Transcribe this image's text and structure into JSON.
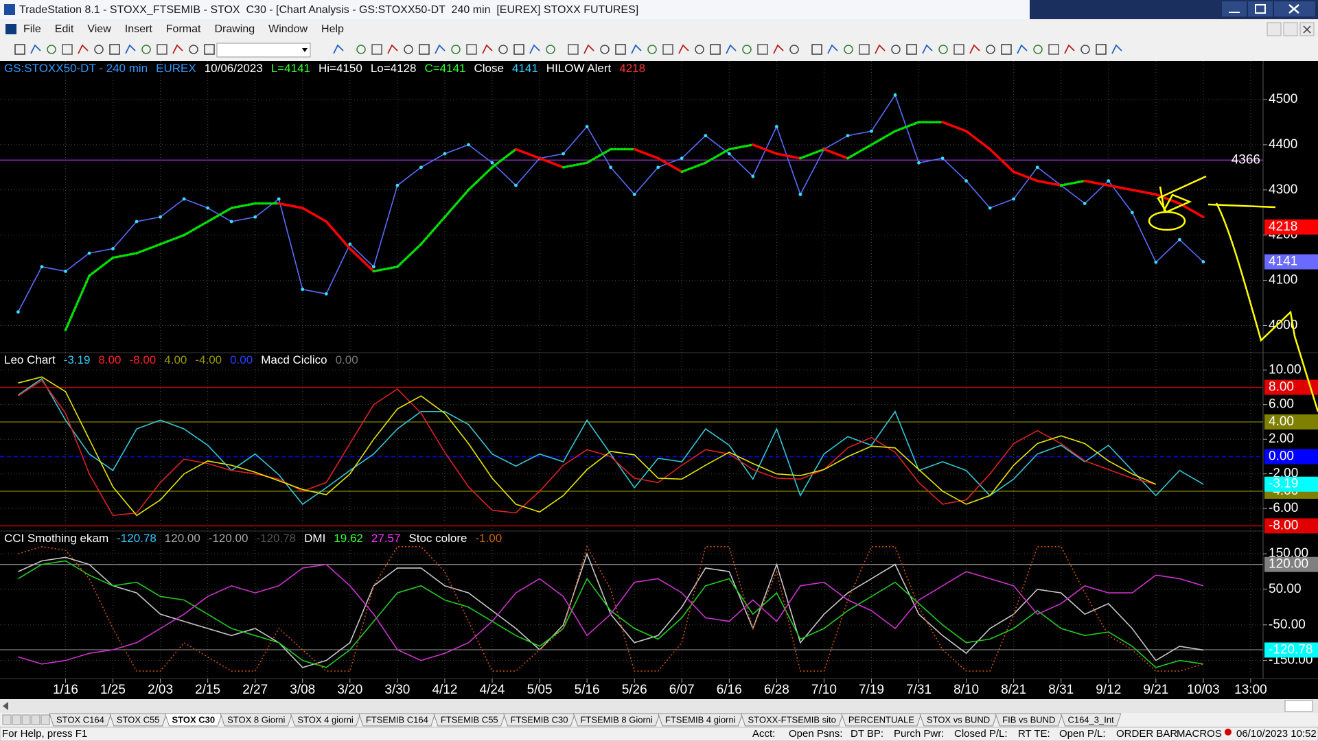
{
  "window": {
    "title": "TradeStation 8.1 - STOXX_FTSEMIB - STOX  C30 - [Chart Analysis - GS:STOXX50-DT  240 min  [EUREX] STOXX FUTURES]",
    "menu": [
      "File",
      "Edit",
      "View",
      "Insert",
      "Format",
      "Drawing",
      "Window",
      "Help"
    ],
    "tabs": [
      "STOX C164",
      "STOX C55",
      "STOX  C30",
      "STOX  8 Giorni",
      "STOX 4 giorni",
      "FTSEMIB C164",
      "FTSEMIB C55",
      "FTSEMIB C30",
      "FTSEMIB  8 Giorni",
      "FTSEMIB  4 giorni",
      "STOXX-FTSEMIB sito",
      "PERCENTUALE",
      "STOX vs BUND",
      "FIB vs BUND",
      "C164_3_Int"
    ],
    "active_tab": 2,
    "status": {
      "help": "For Help, press F1",
      "fields": [
        "Acct:",
        "Open Psns:",
        "DT BP:",
        "Purch Pwr:",
        "Closed P/L:",
        "RT TE:",
        "Open P/L:"
      ],
      "order_bar": "ORDER BAR",
      "macros": "MACROS",
      "clock": "06/10/2023 10:52"
    }
  },
  "chart_data": [
    {
      "type": "line",
      "grid": true,
      "header": [
        {
          "text": "GS:STOXX50-DT - 240 min",
          "color": "#3399ff"
        },
        {
          "text": "EUREX",
          "color": "#3399ff"
        },
        {
          "text": "10/06/2023",
          "color": "#ffffff"
        },
        {
          "text": "L=4141",
          "color": "#33ff33"
        },
        {
          "text": "Hi=4150",
          "color": "#ffffff"
        },
        {
          "text": "Lo=4128",
          "color": "#ffffff"
        },
        {
          "text": "C=4141",
          "color": "#33ff33"
        },
        {
          "text": "Close",
          "color": "#ffffff"
        },
        {
          "text": "4141",
          "color": "#33ccff"
        },
        {
          "text": "HILOW Alert",
          "color": "#ffffff"
        },
        {
          "text": "4218",
          "color": "#ff3333"
        }
      ],
      "categories": [
        null,
        null,
        "1/16",
        null,
        "1/25",
        null,
        "2/03",
        null,
        "2/15",
        null,
        "2/27",
        null,
        "3/08",
        null,
        "3/20",
        null,
        "3/30",
        null,
        "4/12",
        null,
        "4/24",
        null,
        "5/05",
        null,
        "5/16",
        null,
        "5/26",
        null,
        "6/07",
        null,
        "6/16",
        null,
        "6/28",
        null,
        "7/10",
        null,
        "7/19",
        null,
        "7/31",
        null,
        "8/10",
        null,
        "8/21",
        null,
        "8/31",
        null,
        "9/12",
        null,
        "9/21",
        null,
        "10/03",
        null,
        "13:00"
      ],
      "ylim": [
        3940,
        4585
      ],
      "yticks": [
        4000,
        4100,
        4200,
        4300,
        4400,
        4500
      ],
      "levels": [
        {
          "value": 4366,
          "color": "#9933cc",
          "boxed": false
        }
      ],
      "tags": [
        {
          "value": 4218,
          "color": "#ff0000"
        },
        {
          "value": 4141,
          "color": "#6a6aff"
        }
      ],
      "series": [
        {
          "name": "Close",
          "color": "#5a6cff",
          "marker_color": "#33e0ff",
          "values": [
            4030,
            4130,
            4120,
            4160,
            4170,
            4230,
            4240,
            4280,
            4260,
            4230,
            4240,
            4280,
            4080,
            4070,
            4180,
            4130,
            4310,
            4350,
            4380,
            4400,
            4360,
            4310,
            4370,
            4380,
            4440,
            4350,
            4290,
            4350,
            4370,
            4420,
            4380,
            4330,
            4440,
            4290,
            4390,
            4420,
            4430,
            4510,
            4360,
            4370,
            4320,
            4260,
            4280,
            4350,
            4310,
            4270,
            4320,
            4250,
            4140,
            4190,
            4141,
            null,
            null
          ]
        },
        {
          "name": "HILOW Alert",
          "color": "#ff0000",
          "up_color": "#00e000",
          "values": [
            null,
            null,
            3990,
            4110,
            4150,
            4160,
            4180,
            4200,
            4230,
            4260,
            4270,
            4270,
            4260,
            4230,
            4170,
            4120,
            4130,
            4180,
            4240,
            4300,
            4350,
            4390,
            4370,
            4350,
            4360,
            4390,
            4390,
            4370,
            4340,
            4360,
            4390,
            4400,
            4380,
            4370,
            4390,
            4370,
            4400,
            4430,
            4450,
            4450,
            4430,
            4390,
            4340,
            4320,
            4310,
            4320,
            4310,
            4300,
            4290,
            4270,
            4240,
            null,
            null
          ]
        }
      ]
    },
    {
      "type": "line",
      "grid": true,
      "header": [
        {
          "text": "Leo Chart",
          "color": "#ffffff"
        },
        {
          "text": "-3.19",
          "color": "#33ccff"
        },
        {
          "text": "8.00",
          "color": "#ff2222"
        },
        {
          "text": "-8.00",
          "color": "#ff2222"
        },
        {
          "text": "4.00",
          "color": "#999900"
        },
        {
          "text": "-4.00",
          "color": "#999900"
        },
        {
          "text": "0.00",
          "color": "#2244ff"
        },
        {
          "text": "Macd Ciclico",
          "color": "#ffffff"
        },
        {
          "text": "0.00",
          "color": "#777777"
        }
      ],
      "ylim": [
        -8.6,
        12
      ],
      "yticks": [
        {
          "value": 10,
          "label": "10.00"
        },
        {
          "value": 6,
          "label": "6.00"
        },
        {
          "value": 2,
          "label": "2.00"
        },
        {
          "value": -2,
          "label": "-2.00"
        },
        {
          "value": -6,
          "label": "-6.00"
        }
      ],
      "levels": [
        {
          "value": 8,
          "label": "8.00",
          "color": "#e00000",
          "boxed": true
        },
        {
          "value": 4,
          "label": "4.00",
          "color": "#808000",
          "boxed": true
        },
        {
          "value": 0,
          "label": "0.00",
          "color": "#0000ff",
          "boxed": true,
          "dashed": true
        },
        {
          "value": -4,
          "label": "-4.00",
          "color": "#808000",
          "boxed": true
        },
        {
          "value": -8,
          "label": "-8.00",
          "color": "#e00000",
          "boxed": true
        }
      ],
      "tags": [
        {
          "value": -3.19,
          "color": "#00ffff"
        }
      ],
      "series": [
        {
          "color": "#33c8d8",
          "values": [
            7.1,
            9.0,
            4.2,
            0.3,
            -1.6,
            3.2,
            4.2,
            3.2,
            1.3,
            -1.6,
            0.3,
            -2.1,
            -5.5,
            -3.6,
            -1.6,
            0.3,
            3.2,
            5.2,
            5.2,
            3.7,
            0.3,
            -1.1,
            0.3,
            -0.6,
            4.2,
            0.3,
            -3.6,
            -0.2,
            -0.6,
            3.2,
            1.3,
            -2.6,
            3.2,
            -4.5,
            0.3,
            2.3,
            1.3,
            5.2,
            -1.6,
            -0.6,
            -1.6,
            -4.5,
            -2.6,
            0.3,
            1.3,
            -0.6,
            1.3,
            -1.6,
            -4.5,
            -1.6,
            -3.19,
            null,
            null
          ]
        },
        {
          "color": "#dd2222",
          "values": [
            7.0,
            8.8,
            5.0,
            -2.0,
            -6.8,
            -6.5,
            -3.0,
            -0.3,
            -0.8,
            -1.6,
            -2.0,
            -2.6,
            -4.0,
            -3.0,
            1.5,
            6.0,
            7.8,
            5.0,
            0.5,
            -3.5,
            -6.2,
            -6.5,
            -4.0,
            -1.0,
            0.8,
            0.0,
            -2.5,
            -3.0,
            -1.0,
            0.8,
            0.3,
            -1.5,
            -2.5,
            -2.6,
            -1.5,
            1.0,
            2.2,
            0.5,
            -3.0,
            -5.5,
            -5.0,
            -2.0,
            1.5,
            3.0,
            1.5,
            -0.5,
            -1.5,
            -2.5,
            -3.2,
            null,
            null,
            null,
            null
          ]
        },
        {
          "color": "#e6e600",
          "values": [
            8.5,
            9.2,
            7.5,
            2.0,
            -3.5,
            -6.8,
            -5.0,
            -2.0,
            -0.5,
            -1.0,
            -1.8,
            -2.8,
            -3.8,
            -4.4,
            -2.0,
            2.0,
            5.5,
            7.0,
            5.0,
            1.5,
            -2.5,
            -5.5,
            -6.4,
            -4.5,
            -1.5,
            0.6,
            0.2,
            -2.5,
            -2.6,
            -1.0,
            0.5,
            -0.8,
            -2.0,
            -2.2,
            -1.5,
            0.0,
            1.2,
            1.0,
            -1.5,
            -4.0,
            -5.5,
            -4.5,
            -1.0,
            1.5,
            2.4,
            1.5,
            -0.5,
            -2.0,
            -3.2,
            null,
            null,
            null,
            null
          ]
        }
      ]
    },
    {
      "type": "line",
      "grid": true,
      "header": [
        {
          "text": "CCI Smothing ekam",
          "color": "#ffffff"
        },
        {
          "text": "-120.78",
          "color": "#33ccff"
        },
        {
          "text": "120.00",
          "color": "#aaaaaa"
        },
        {
          "text": "-120.00",
          "color": "#aaaaaa"
        },
        {
          "text": "-120.78",
          "color": "#555555"
        },
        {
          "text": "DMI",
          "color": "#ffffff"
        },
        {
          "text": "19.62",
          "color": "#33ff33"
        },
        {
          "text": "27.57",
          "color": "#ff33ff"
        },
        {
          "text": "Stoc colore",
          "color": "#ffffff"
        },
        {
          "text": "-1.00",
          "color": "#cc6600"
        }
      ],
      "ylim": [
        -201,
        214
      ],
      "yticks": [
        {
          "value": 150,
          "label": "150.00"
        },
        {
          "value": 50,
          "label": "50.00"
        },
        {
          "value": -50,
          "label": "-50.00"
        },
        {
          "value": -150,
          "label": "-150.00"
        }
      ],
      "levels": [
        {
          "value": 120,
          "label": "120.00",
          "color": "#808080",
          "boxed": true
        },
        {
          "value": -120,
          "color": "#808080"
        }
      ],
      "tags": [
        {
          "value": -120.78,
          "color": "#00ffff"
        }
      ],
      "series": [
        {
          "color": "#c8c8c8",
          "values": [
            100,
            130,
            140,
            120,
            60,
            40,
            -20,
            -40,
            -60,
            -80,
            -60,
            -100,
            -170,
            -150,
            -100,
            60,
            110,
            110,
            60,
            40,
            -10,
            -60,
            -120,
            -50,
            150,
            -20,
            -100,
            -80,
            0,
            110,
            100,
            -60,
            120,
            -100,
            -20,
            40,
            80,
            120,
            -20,
            -80,
            -130,
            -60,
            -20,
            50,
            40,
            -20,
            10,
            -60,
            -150,
            -110,
            -120.78,
            null,
            null
          ]
        },
        {
          "color": "#22cc22",
          "values": [
            80,
            120,
            130,
            90,
            60,
            70,
            30,
            20,
            -20,
            -60,
            -80,
            -100,
            -150,
            -170,
            -120,
            -40,
            40,
            60,
            20,
            0,
            -40,
            -80,
            -110,
            -60,
            80,
            -10,
            -60,
            -90,
            -30,
            60,
            80,
            -20,
            40,
            -90,
            -60,
            -10,
            30,
            70,
            10,
            -50,
            -100,
            -90,
            -60,
            -10,
            -60,
            -80,
            -70,
            -110,
            -170,
            -150,
            -160,
            null,
            null
          ]
        },
        {
          "color": "#cc33cc",
          "values": [
            -140,
            -160,
            -150,
            -130,
            -120,
            -100,
            -60,
            -20,
            30,
            60,
            40,
            60,
            110,
            120,
            60,
            -20,
            -120,
            -150,
            -130,
            -100,
            -40,
            40,
            80,
            30,
            -80,
            -20,
            70,
            80,
            40,
            -30,
            -40,
            20,
            -40,
            60,
            70,
            20,
            -10,
            -60,
            20,
            60,
            100,
            80,
            60,
            -20,
            10,
            60,
            40,
            40,
            90,
            80,
            60,
            null,
            null
          ]
        },
        {
          "color": "#cc5500",
          "dotted": true,
          "values": [
            150,
            170,
            160,
            80,
            -60,
            -180,
            -180,
            -100,
            -140,
            -180,
            -180,
            -60,
            -120,
            -180,
            -180,
            60,
            170,
            170,
            100,
            -40,
            -180,
            -180,
            -120,
            -60,
            170,
            50,
            -180,
            -180,
            -100,
            170,
            170,
            -60,
            100,
            -180,
            -180,
            20,
            170,
            170,
            0,
            -120,
            -180,
            -180,
            -20,
            170,
            170,
            40,
            -80,
            -120,
            -180,
            -180,
            -160,
            null,
            null
          ]
        }
      ]
    }
  ]
}
